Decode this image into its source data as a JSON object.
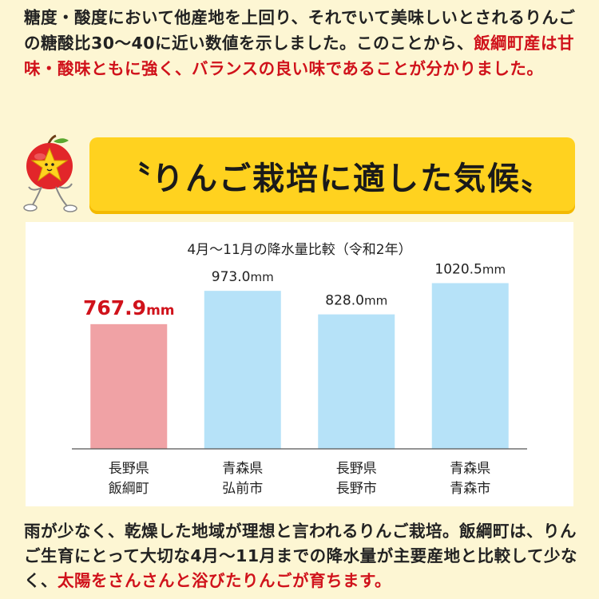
{
  "intro": {
    "text_plain": "糖度・酸度において他産地を上回り、それでいて美味しいとされるりんごの糖酸比30〜40に近い数値を示しました。このことから、",
    "text_highlight": "飯綱町産は甘味・酸味ともに強く、バランスの良い味であることが分かりました。"
  },
  "banner": {
    "title": "〝りんご栽培に適した気候〟",
    "mascot_icon": "apple-mascot-icon"
  },
  "outro": {
    "text_plain": "雨が少なく、乾燥した地域が理想と言われるりんご栽培。飯綱町は、りんご生育にとって大切な4月〜11月までの降水量が主要産地と比較して少なく、",
    "text_highlight": "太陽をさんさんと浴びたりんごが育ちます。"
  },
  "colors": {
    "highlight_red": "#d0121b",
    "bar_highlight": "#f0a2a5",
    "bar_normal": "#b6e2f8",
    "banner_yellow": "#ffd21f",
    "page_bg": "#fdf6d3"
  },
  "chart_data": {
    "type": "bar",
    "title": "4月〜11月の降水量比較（令和2年）",
    "unit": "mm",
    "categories": [
      [
        "長野県",
        "飯綱町"
      ],
      [
        "青森県",
        "弘前市"
      ],
      [
        "長野県",
        "長野市"
      ],
      [
        "青森県",
        "青森市"
      ]
    ],
    "values": [
      767.9,
      973.0,
      828.0,
      1020.5
    ],
    "value_labels": [
      "767.9",
      "973.0",
      "828.0",
      "1020.5"
    ],
    "highlight_index": 0,
    "ylim": [
      0,
      1200
    ],
    "grid": false,
    "legend": "none"
  }
}
